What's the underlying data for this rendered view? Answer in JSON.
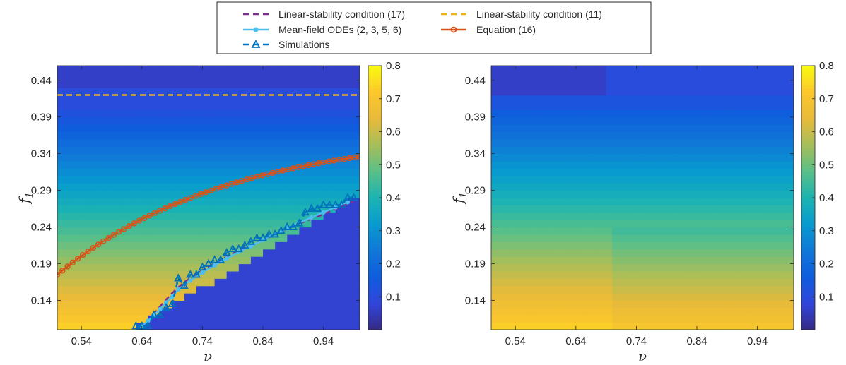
{
  "chart_data": [
    {
      "type": "heatmap",
      "panel": "left",
      "xlabel": "ν",
      "ylabel": "f1",
      "ylabel_base": "f",
      "ylabel_sub": "1",
      "xlim": [
        0.5,
        1.0
      ],
      "ylim": [
        0.1,
        0.46
      ],
      "x_ticks": [
        "0.54",
        "0.64",
        "0.74",
        "0.84",
        "0.94"
      ],
      "x_tick_values": [
        0.54,
        0.64,
        0.74,
        0.84,
        0.94
      ],
      "y_ticks": [
        "0.44",
        "0.39",
        "0.34",
        "0.29",
        "0.24",
        "0.19",
        "0.14"
      ],
      "y_tick_values": [
        0.44,
        0.39,
        0.34,
        0.29,
        0.24,
        0.19,
        0.14
      ],
      "colorbar": {
        "range": [
          0.0,
          0.8
        ],
        "ticks": [
          "0.8",
          "0.7",
          "0.6",
          "0.5",
          "0.4",
          "0.3",
          "0.2",
          "0.1"
        ],
        "tick_values": [
          0.8,
          0.7,
          0.6,
          0.5,
          0.4,
          0.3,
          0.2,
          0.1
        ]
      },
      "series": [
        {
          "name": "Linear-stability condition (17)",
          "style": "dashed",
          "color": "#7e2f8e",
          "x": [
            0.65,
            0.67,
            0.69,
            0.71,
            0.73,
            0.75,
            0.77,
            0.79,
            0.81,
            0.83,
            0.85,
            0.87,
            0.89,
            0.91,
            0.93,
            0.95,
            0.97,
            0.99
          ],
          "y": [
            0.11,
            0.132,
            0.15,
            0.165,
            0.176,
            0.186,
            0.195,
            0.204,
            0.212,
            0.219,
            0.226,
            0.234,
            0.241,
            0.248,
            0.254,
            0.261,
            0.268,
            0.275
          ]
        },
        {
          "name": "Linear-stability condition (11)",
          "style": "dashed",
          "color": "#edb120",
          "x": [
            0.5,
            1.0
          ],
          "y": [
            0.42,
            0.42
          ]
        },
        {
          "name": "Mean-field ODEs (2, 3, 5, 6)",
          "style": "solid-dot",
          "color": "#4dbeee",
          "x": [
            0.64,
            0.65,
            0.66,
            0.67,
            0.68,
            0.69,
            0.7,
            0.72,
            0.74,
            0.76,
            0.78,
            0.8,
            0.82,
            0.84,
            0.86,
            0.88,
            0.9,
            0.92,
            0.94,
            0.96,
            0.98
          ],
          "y": [
            0.105,
            0.112,
            0.12,
            0.128,
            0.137,
            0.145,
            0.155,
            0.167,
            0.178,
            0.188,
            0.197,
            0.206,
            0.214,
            0.222,
            0.231,
            0.238,
            0.246,
            0.253,
            0.26,
            0.267,
            0.274
          ]
        },
        {
          "name": "Equation (16)",
          "style": "solid-circle",
          "color": "#d95319",
          "formula": "0.175 + 0.161*(1-exp(-3.5*(x-0.5)))/(1-exp(-1.75))",
          "x_start": 0.5,
          "x_end": 1.0,
          "points": 60
        },
        {
          "name": "Simulations",
          "style": "dashed-triangle",
          "color": "#0072bd",
          "x": [
            0.63,
            0.64,
            0.65,
            0.66,
            0.67,
            0.68,
            0.69,
            0.7,
            0.71,
            0.72,
            0.73,
            0.74,
            0.75,
            0.76,
            0.77,
            0.78,
            0.79,
            0.8,
            0.81,
            0.82,
            0.83,
            0.84,
            0.85,
            0.86,
            0.87,
            0.88,
            0.89,
            0.9,
            0.91,
            0.92,
            0.93,
            0.94,
            0.95,
            0.96,
            0.97,
            0.98,
            0.99
          ],
          "y": [
            0.105,
            0.105,
            0.105,
            0.12,
            0.12,
            0.13,
            0.135,
            0.17,
            0.16,
            0.175,
            0.175,
            0.185,
            0.19,
            0.195,
            0.195,
            0.205,
            0.21,
            0.21,
            0.215,
            0.22,
            0.225,
            0.225,
            0.23,
            0.23,
            0.235,
            0.24,
            0.24,
            0.245,
            0.26,
            0.265,
            0.265,
            0.27,
            0.27,
            0.27,
            0.27,
            0.28,
            0.28
          ]
        }
      ]
    },
    {
      "type": "heatmap",
      "panel": "right",
      "xlabel": "ν",
      "ylabel": "f1",
      "ylabel_base": "f",
      "ylabel_sub": "1",
      "xlim": [
        0.5,
        1.0
      ],
      "ylim": [
        0.1,
        0.46
      ],
      "x_ticks": [
        "0.54",
        "0.64",
        "0.74",
        "0.84",
        "0.94"
      ],
      "x_tick_values": [
        0.54,
        0.64,
        0.74,
        0.84,
        0.94
      ],
      "y_ticks": [
        "0.44",
        "0.39",
        "0.34",
        "0.29",
        "0.24",
        "0.19",
        "0.14"
      ],
      "y_tick_values": [
        0.44,
        0.39,
        0.34,
        0.29,
        0.24,
        0.19,
        0.14
      ],
      "colorbar": {
        "range": [
          0.0,
          0.8
        ],
        "ticks": [
          "0.8",
          "0.7",
          "0.6",
          "0.5",
          "0.4",
          "0.3",
          "0.2",
          "0.1"
        ],
        "tick_values": [
          0.8,
          0.7,
          0.6,
          0.5,
          0.4,
          0.3,
          0.2,
          0.1
        ]
      }
    }
  ],
  "legend": {
    "placement": "top-center",
    "items": [
      {
        "label": "Linear-stability condition (17)",
        "color": "#7e2f8e",
        "style": "dashed"
      },
      {
        "label": "Linear-stability condition (11)",
        "color": "#edb120",
        "style": "dashed"
      },
      {
        "label": "Mean-field ODEs (2, 3, 5, 6)",
        "color": "#4dbeee",
        "style": "solid-dot"
      },
      {
        "label": "Equation (16)",
        "color": "#d95319",
        "style": "solid-circle"
      },
      {
        "label": "Simulations",
        "color": "#0072bd",
        "style": "dashed-triangle"
      }
    ]
  },
  "colormap": "parula"
}
